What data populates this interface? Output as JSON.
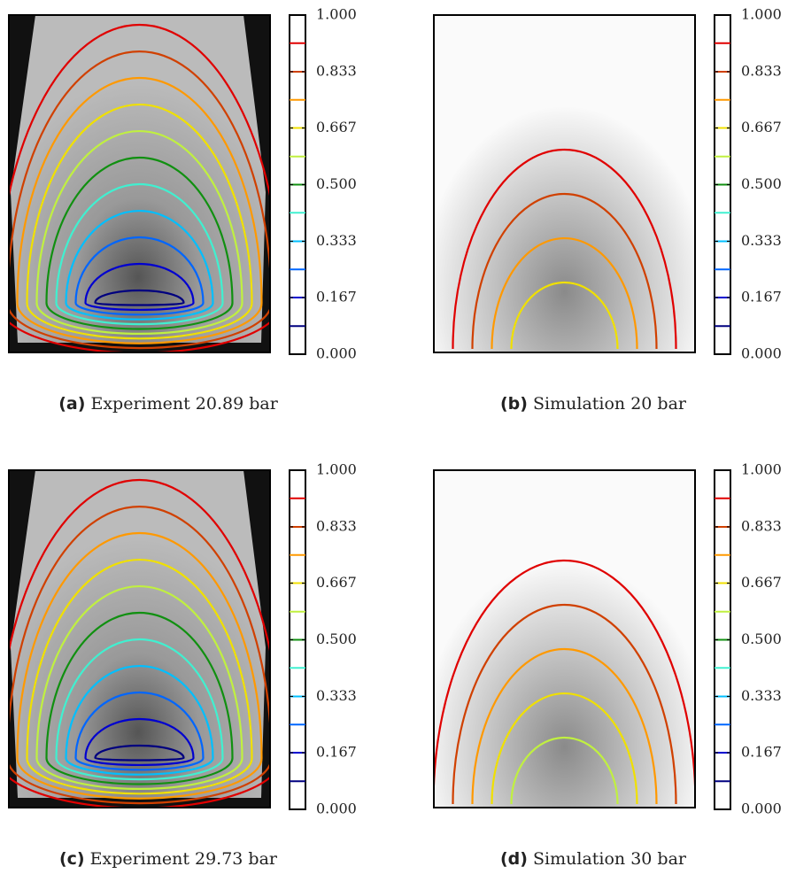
{
  "chart_data": [
    {
      "type": "experiment",
      "label": "(a)",
      "title": "Experiment 20.89 bar",
      "ylim": [
        0,
        1
      ],
      "yticks": [
        {
          "value": 0,
          "label": "0.000"
        },
        {
          "value": 0.167,
          "label": "0.167"
        },
        {
          "value": 0.333,
          "label": "0.333"
        },
        {
          "value": 0.5,
          "label": "0.500"
        },
        {
          "value": 0.667,
          "label": "0.667"
        },
        {
          "value": 0.833,
          "label": "0.833"
        },
        {
          "value": 1,
          "label": "1.000"
        }
      ],
      "levels": [
        0.083,
        0.167,
        0.25,
        0.333,
        0.417,
        0.5,
        0.583,
        0.667,
        0.75,
        0.833,
        0.917
      ],
      "colors": [
        "#00007f",
        "#0000d0",
        "#0066ff",
        "#00bfff",
        "#40f0d0",
        "#109010",
        "#c0f040",
        "#f0e000",
        "#ff9900",
        "#d04000",
        "#e00000"
      ]
    },
    {
      "type": "simulation",
      "label": "(b)",
      "title": "Simulation 20 bar",
      "ylim": [
        0,
        1
      ],
      "yticks": [
        {
          "value": 0,
          "label": "0.000"
        },
        {
          "value": 0.167,
          "label": "0.167"
        },
        {
          "value": 0.333,
          "label": "0.333"
        },
        {
          "value": 0.5,
          "label": "0.500"
        },
        {
          "value": 0.667,
          "label": "0.667"
        },
        {
          "value": 0.833,
          "label": "0.833"
        },
        {
          "value": 1,
          "label": "1.000"
        }
      ],
      "levels": [
        0.083,
        0.167,
        0.25,
        0.333,
        0.417,
        0.5,
        0.583,
        0.667,
        0.75,
        0.833,
        0.917
      ],
      "colors": [
        "#00007f",
        "#0000d0",
        "#0066ff",
        "#00bfff",
        "#40f0d0",
        "#109010",
        "#c0f040",
        "#f0e000",
        "#ff9900",
        "#d04000",
        "#e00000"
      ]
    },
    {
      "type": "experiment",
      "label": "(c)",
      "title": "Experiment 29.73 bar",
      "ylim": [
        0,
        1
      ],
      "yticks": [
        {
          "value": 0,
          "label": "0.000"
        },
        {
          "value": 0.167,
          "label": "0.167"
        },
        {
          "value": 0.333,
          "label": "0.333"
        },
        {
          "value": 0.5,
          "label": "0.500"
        },
        {
          "value": 0.667,
          "label": "0.667"
        },
        {
          "value": 0.833,
          "label": "0.833"
        },
        {
          "value": 1,
          "label": "1.000"
        }
      ],
      "levels": [
        0.083,
        0.167,
        0.25,
        0.333,
        0.417,
        0.5,
        0.583,
        0.667,
        0.75,
        0.833,
        0.917
      ],
      "colors": [
        "#00007f",
        "#0000d0",
        "#0066ff",
        "#00bfff",
        "#40f0d0",
        "#109010",
        "#c0f040",
        "#f0e000",
        "#ff9900",
        "#d04000",
        "#e00000"
      ]
    },
    {
      "type": "simulation",
      "label": "(d)",
      "title": "Simulation 30 bar",
      "ylim": [
        0,
        1
      ],
      "yticks": [
        {
          "value": 0,
          "label": "0.000"
        },
        {
          "value": 0.167,
          "label": "0.167"
        },
        {
          "value": 0.333,
          "label": "0.333"
        },
        {
          "value": 0.5,
          "label": "0.500"
        },
        {
          "value": 0.667,
          "label": "0.667"
        },
        {
          "value": 0.833,
          "label": "0.833"
        },
        {
          "value": 1,
          "label": "1.000"
        }
      ],
      "levels": [
        0.083,
        0.167,
        0.25,
        0.333,
        0.417,
        0.5,
        0.583,
        0.667,
        0.75,
        0.833,
        0.917
      ],
      "colors": [
        "#00007f",
        "#0000d0",
        "#0066ff",
        "#00bfff",
        "#40f0d0",
        "#109010",
        "#c0f040",
        "#f0e000",
        "#ff9900",
        "#d04000",
        "#e00000"
      ]
    }
  ]
}
